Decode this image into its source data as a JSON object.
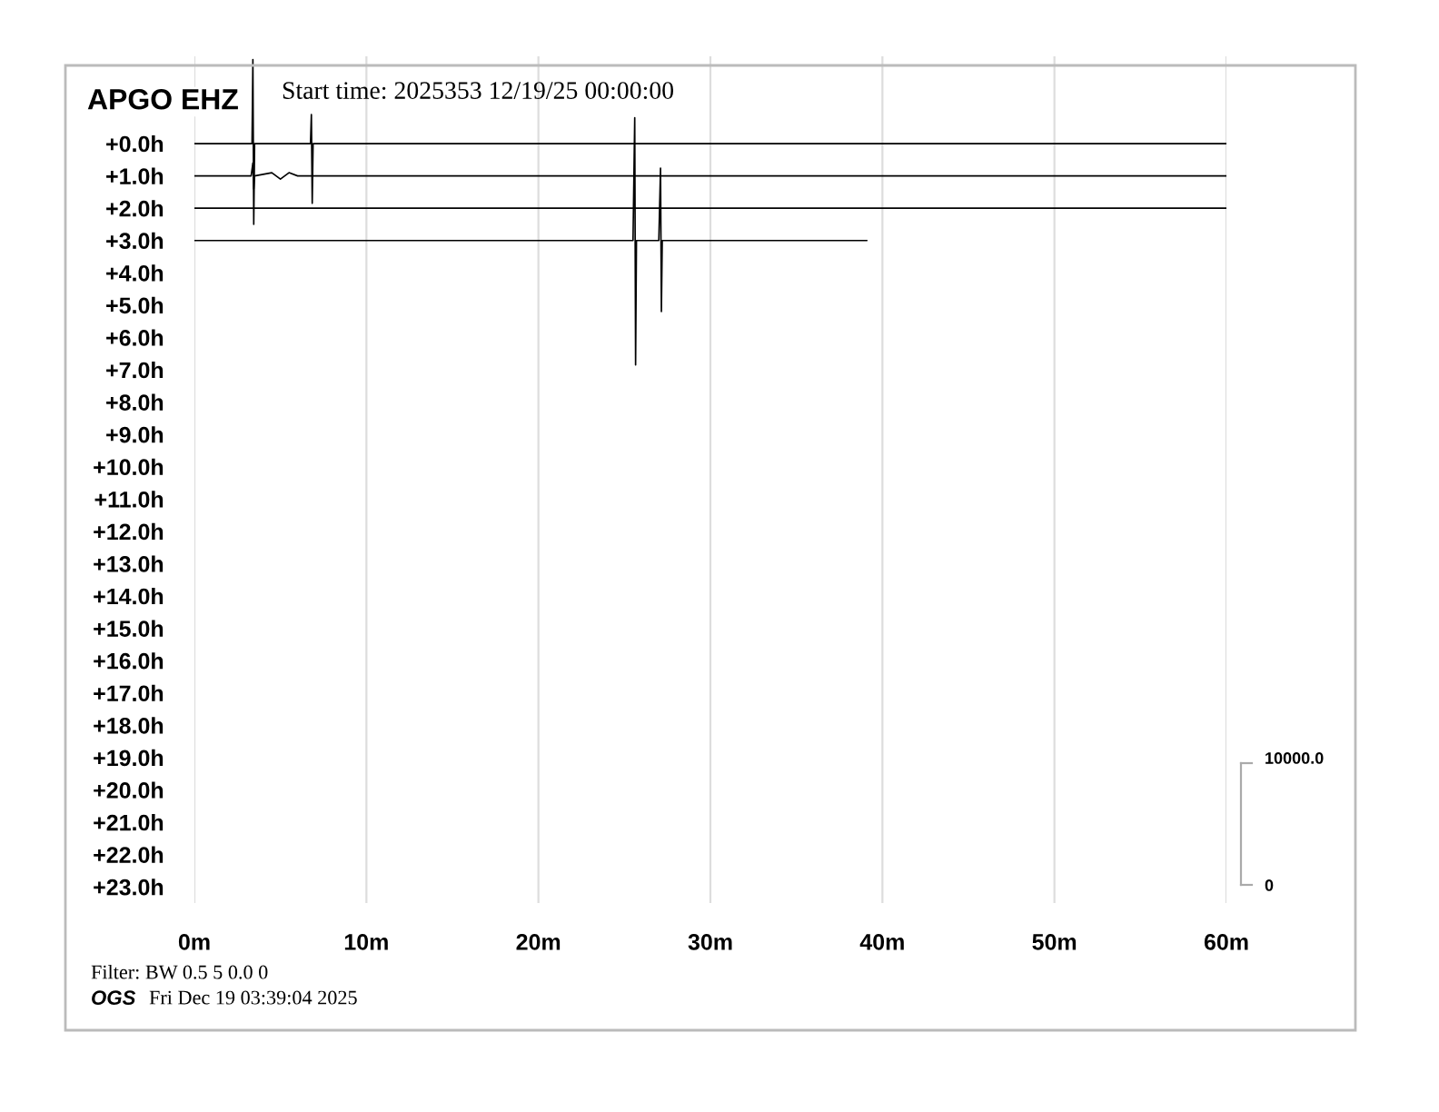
{
  "chart_data": {
    "type": "line",
    "title": "APGO EHZ",
    "subtitle": "Start time: 2025353 12/19/25 00:00:00",
    "xlim": [
      0,
      60
    ],
    "xticks": [
      {
        "value": 0,
        "label": "0m"
      },
      {
        "value": 10,
        "label": "10m"
      },
      {
        "value": 20,
        "label": "20m"
      },
      {
        "value": 30,
        "label": "30m"
      },
      {
        "value": 40,
        "label": "40m"
      },
      {
        "value": 50,
        "label": "50m"
      },
      {
        "value": 60,
        "label": "60m"
      }
    ],
    "ylim": [
      23.5,
      -2.7
    ],
    "yticks": [
      {
        "value": 0,
        "label": "+0.0h"
      },
      {
        "value": 1,
        "label": "+1.0h"
      },
      {
        "value": 2,
        "label": "+2.0h"
      },
      {
        "value": 3,
        "label": "+3.0h"
      },
      {
        "value": 4,
        "label": "+4.0h"
      },
      {
        "value": 5,
        "label": "+5.0h"
      },
      {
        "value": 6,
        "label": "+6.0h"
      },
      {
        "value": 7,
        "label": "+7.0h"
      },
      {
        "value": 8,
        "label": "+8.0h"
      },
      {
        "value": 9,
        "label": "+9.0h"
      },
      {
        "value": 10,
        "label": "+10.0h"
      },
      {
        "value": 11,
        "label": "+11.0h"
      },
      {
        "value": 12,
        "label": "+12.0h"
      },
      {
        "value": 13,
        "label": "+13.0h"
      },
      {
        "value": 14,
        "label": "+14.0h"
      },
      {
        "value": 15,
        "label": "+15.0h"
      },
      {
        "value": 16,
        "label": "+16.0h"
      },
      {
        "value": 17,
        "label": "+17.0h"
      },
      {
        "value": 18,
        "label": "+18.0h"
      },
      {
        "value": 19,
        "label": "+19.0h"
      },
      {
        "value": 20,
        "label": "+20.0h"
      },
      {
        "value": 21,
        "label": "+21.0h"
      },
      {
        "value": 22,
        "label": "+22.0h"
      },
      {
        "value": 23,
        "label": "+23.0h"
      }
    ],
    "grid": "x",
    "series": [
      {
        "color": "#000000",
        "x": [
          0,
          3.35,
          3.4,
          3.45,
          3.5,
          6.75,
          6.8,
          6.85,
          6.9,
          60
        ],
        "values": [
          0,
          0,
          -2.6,
          2.5,
          0,
          0,
          -0.9,
          1.85,
          0,
          0
        ]
      },
      {
        "color": "#000000",
        "x": [
          0,
          3.3,
          3.4,
          3.45,
          3.5,
          4.5,
          5.0,
          5.5,
          6.0,
          60
        ],
        "values": [
          1,
          1,
          0.6,
          1.4,
          1,
          0.9,
          1.1,
          0.9,
          1,
          1
        ]
      },
      {
        "color": "#000000",
        "x": [
          0,
          60
        ],
        "values": [
          2,
          2
        ]
      },
      {
        "color": "#000000",
        "x": [
          0,
          25.5,
          25.6,
          25.65,
          25.7,
          27.0,
          27.1,
          27.15,
          27.2,
          39.1
        ],
        "values": [
          3,
          3,
          -0.8,
          6.85,
          3,
          3,
          0.76,
          5.2,
          3,
          3
        ]
      }
    ],
    "annotations": [
      "10000.0",
      "0",
      "Filter: BW 0.5 5 0.0 0",
      "OGS",
      "Fri Dec 19 03:39:04 2025"
    ]
  }
}
